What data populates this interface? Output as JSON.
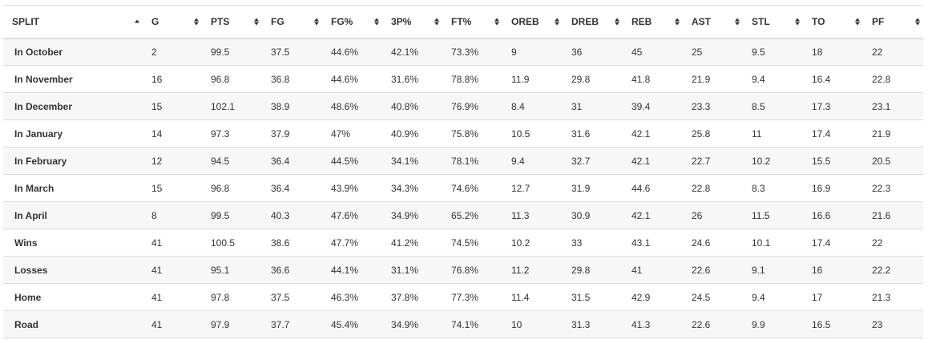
{
  "table": {
    "headers": [
      "SPLIT",
      "G",
      "PTS",
      "FG",
      "FG%",
      "3P%",
      "FT%",
      "OREB",
      "DREB",
      "REB",
      "AST",
      "STL",
      "TO",
      "PF"
    ],
    "sorted_column": "SPLIT",
    "sort_direction": "ascending",
    "rows": [
      [
        "In October",
        "2",
        "99.5",
        "37.5",
        "44.6%",
        "42.1%",
        "73.3%",
        "9",
        "36",
        "45",
        "25",
        "9.5",
        "18",
        "22"
      ],
      [
        "In November",
        "16",
        "96.8",
        "36.8",
        "44.6%",
        "31.6%",
        "78.8%",
        "11.9",
        "29.8",
        "41.8",
        "21.9",
        "9.4",
        "16.4",
        "22.8"
      ],
      [
        "In December",
        "15",
        "102.1",
        "38.9",
        "48.6%",
        "40.8%",
        "76.9%",
        "8.4",
        "31",
        "39.4",
        "23.3",
        "8.5",
        "17.3",
        "23.1"
      ],
      [
        "In January",
        "14",
        "97.3",
        "37.9",
        "47%",
        "40.9%",
        "75.8%",
        "10.5",
        "31.6",
        "42.1",
        "25.8",
        "11",
        "17.4",
        "21.9"
      ],
      [
        "In February",
        "12",
        "94.5",
        "36.4",
        "44.5%",
        "34.1%",
        "78.1%",
        "9.4",
        "32.7",
        "42.1",
        "22.7",
        "10.2",
        "15.5",
        "20.5"
      ],
      [
        "In March",
        "15",
        "96.8",
        "36.4",
        "43.9%",
        "34.3%",
        "74.6%",
        "12.7",
        "31.9",
        "44.6",
        "22.8",
        "8.3",
        "16.9",
        "22.3"
      ],
      [
        "In April",
        "8",
        "99.5",
        "40.3",
        "47.6%",
        "34.9%",
        "65.2%",
        "11.3",
        "30.9",
        "42.1",
        "26",
        "11.5",
        "16.6",
        "21.6"
      ],
      [
        "Wins",
        "41",
        "100.5",
        "38.6",
        "47.7%",
        "41.2%",
        "74.5%",
        "10.2",
        "33",
        "43.1",
        "24.6",
        "10.1",
        "17.4",
        "22"
      ],
      [
        "Losses",
        "41",
        "95.1",
        "36.6",
        "44.1%",
        "31.1%",
        "76.8%",
        "11.2",
        "29.8",
        "41",
        "22.6",
        "9.1",
        "16",
        "22.2"
      ],
      [
        "Home",
        "41",
        "97.8",
        "37.5",
        "46.3%",
        "37.8%",
        "77.3%",
        "11.4",
        "31.5",
        "42.9",
        "24.5",
        "9.4",
        "17",
        "21.3"
      ],
      [
        "Road",
        "41",
        "97.9",
        "37.7",
        "45.4%",
        "34.9%",
        "74.1%",
        "10",
        "31.3",
        "41.3",
        "22.6",
        "9.9",
        "16.5",
        "23"
      ]
    ]
  }
}
